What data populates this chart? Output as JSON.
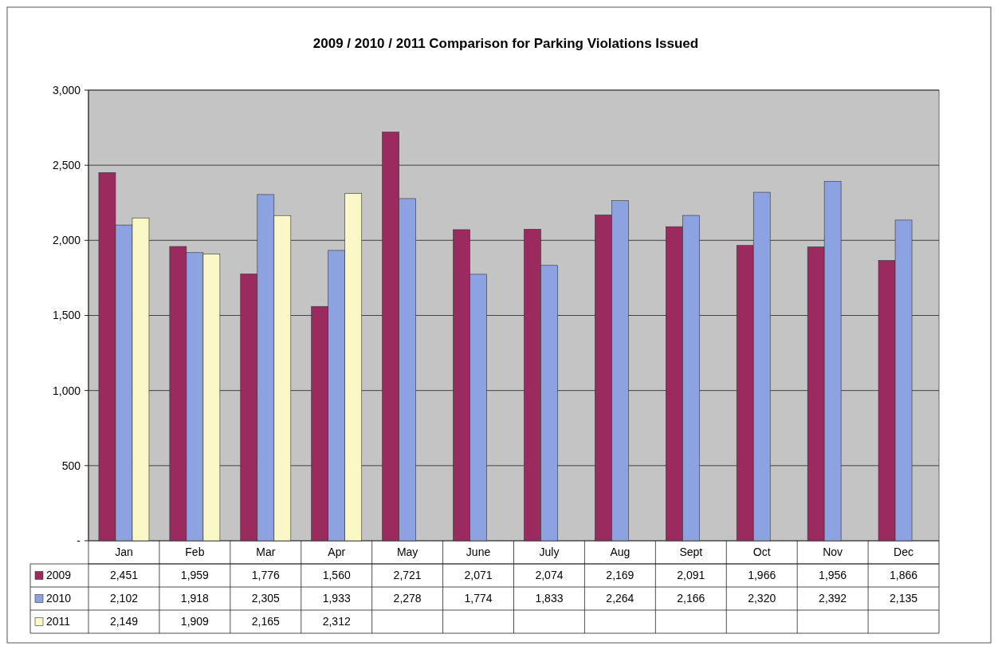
{
  "chart_data": {
    "type": "bar",
    "title": "2009 / 2010 / 2011 Comparison for Parking Violations Issued",
    "categories": [
      "Jan",
      "Feb",
      "Mar",
      "Apr",
      "May",
      "June",
      "July",
      "Aug",
      "Sept",
      "Oct",
      "Nov",
      "Dec"
    ],
    "series": [
      {
        "name": "2009",
        "color": "#9b2a5e",
        "values": [
          2451,
          1959,
          1776,
          1560,
          2721,
          2071,
          2074,
          2169,
          2091,
          1966,
          1956,
          1866
        ],
        "value_labels": [
          "2,451",
          "1,959",
          "1,776",
          "1,560",
          "2,721",
          "2,071",
          "2,074",
          "2,169",
          "2,091",
          "1,966",
          "1,956",
          "1,866"
        ]
      },
      {
        "name": "2010",
        "color": "#8da2e0",
        "values": [
          2102,
          1918,
          2305,
          1933,
          2278,
          1774,
          1833,
          2264,
          2166,
          2320,
          2392,
          2135
        ],
        "value_labels": [
          "2,102",
          "1,918",
          "2,305",
          "1,933",
          "2,278",
          "1,774",
          "1,833",
          "2,264",
          "2,166",
          "2,320",
          "2,392",
          "2,135"
        ]
      },
      {
        "name": "2011",
        "color": "#fbf8c8",
        "values": [
          2149,
          1909,
          2165,
          2312,
          null,
          null,
          null,
          null,
          null,
          null,
          null,
          null
        ],
        "value_labels": [
          "2,149",
          "1,909",
          "2,165",
          "2,312",
          null,
          null,
          null,
          null,
          null,
          null,
          null,
          null
        ]
      }
    ],
    "ylim": [
      0,
      3000
    ],
    "yticks": [
      {
        "value": 0,
        "label": "-"
      },
      {
        "value": 500,
        "label": "500"
      },
      {
        "value": 1000,
        "label": "1,000"
      },
      {
        "value": 1500,
        "label": "1,500"
      },
      {
        "value": 2000,
        "label": "2,000"
      },
      {
        "value": 2500,
        "label": "2,500"
      },
      {
        "value": 3000,
        "label": "3,000"
      }
    ],
    "grid": "y",
    "legend": "bottom"
  }
}
